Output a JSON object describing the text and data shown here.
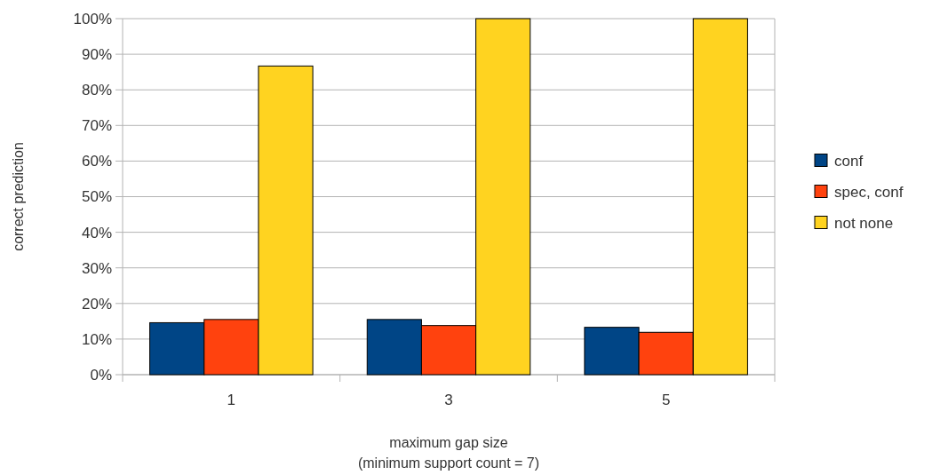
{
  "chart_data": {
    "type": "bar",
    "xlabel": "maximum gap size\n(minimum support count = 7)",
    "ylabel": "correct prediction",
    "categories": [
      "1",
      "3",
      "5"
    ],
    "series": [
      {
        "name": "conf",
        "color": "#004586",
        "values": [
          14.6,
          15.5,
          13.3
        ]
      },
      {
        "name": "spec, conf",
        "color": "#ff420e",
        "values": [
          15.5,
          13.8,
          11.9
        ]
      },
      {
        "name": "not none",
        "color": "#ffd320",
        "values": [
          86.7,
          100,
          100
        ]
      }
    ],
    "ylim": [
      0,
      100
    ],
    "yticks": [
      {
        "value": 0,
        "label": "0%"
      },
      {
        "value": 10,
        "label": "10%"
      },
      {
        "value": 20,
        "label": "20%"
      },
      {
        "value": 30,
        "label": "30%"
      },
      {
        "value": 40,
        "label": "40%"
      },
      {
        "value": 50,
        "label": "50%"
      },
      {
        "value": 60,
        "label": "60%"
      },
      {
        "value": 70,
        "label": "70%"
      },
      {
        "value": 80,
        "label": "80%"
      },
      {
        "value": 90,
        "label": "90%"
      },
      {
        "value": 100,
        "label": "100%"
      }
    ],
    "grid": "y",
    "legend": "right"
  }
}
